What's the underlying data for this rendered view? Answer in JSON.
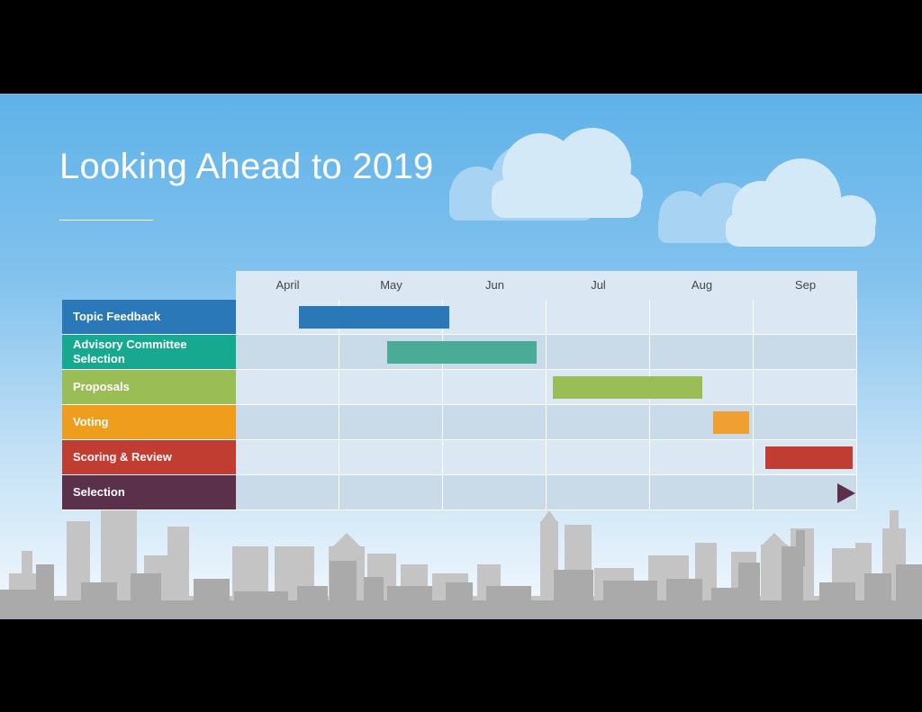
{
  "slide": {
    "title": "Looking Ahead to 2019"
  },
  "chart_data": {
    "type": "gantt",
    "title": "Looking Ahead to 2019",
    "months": [
      "April",
      "May",
      "Jun",
      "Jul",
      "Aug",
      "Sep"
    ],
    "tasks": [
      {
        "name": "Topic Feedback",
        "color": "#2a78b7",
        "start": 0.6,
        "end": 2.1
      },
      {
        "name": "Advisory Committee Selection",
        "color": "#4aab97",
        "start": 1.45,
        "end": 2.95
      },
      {
        "name": "Proposals",
        "color": "#9bbd56",
        "start": 3.05,
        "end": 4.55
      },
      {
        "name": "Voting",
        "color": "#f0a033",
        "start": 4.6,
        "end": 5.0
      },
      {
        "name": "Scoring & Review",
        "color": "#c23d31",
        "start": 5.1,
        "end": 6.0
      },
      {
        "name": "Selection",
        "color": "#5a304a",
        "milestone": 6.0
      }
    ],
    "label_colors": [
      "#2a78b7",
      "#16a990",
      "#9bbd56",
      "#ee9d1c",
      "#c23d31",
      "#5a304a"
    ]
  }
}
